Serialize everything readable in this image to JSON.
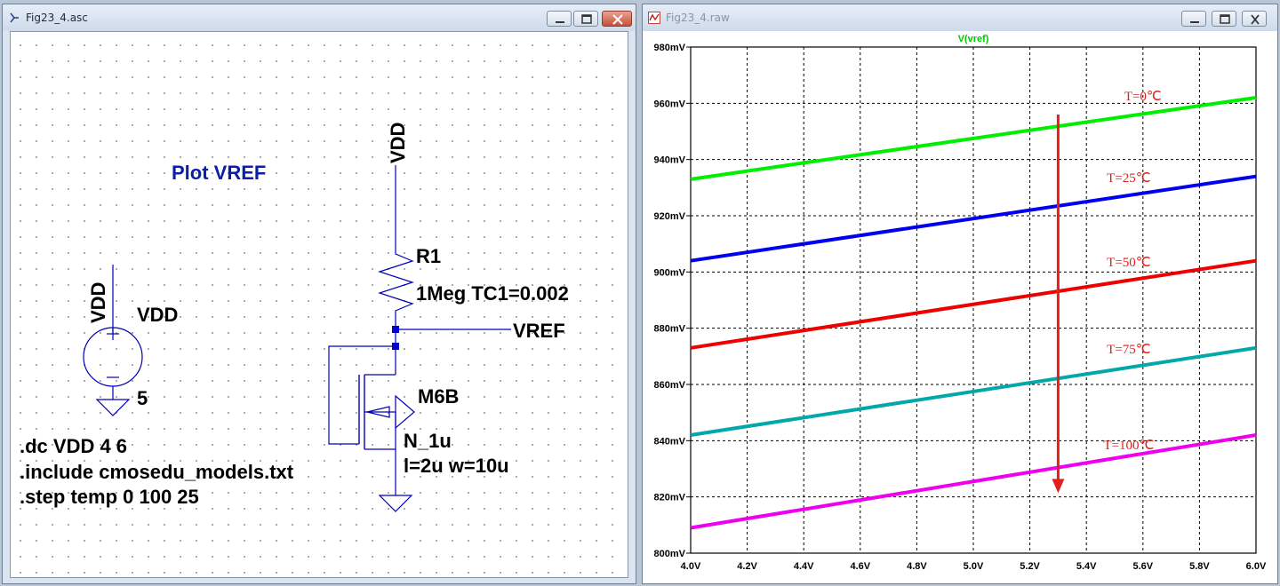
{
  "schematic_window": {
    "title": "Fig23_4.asc",
    "comment": "Plot VREF",
    "nets": {
      "vdd_supply": "VDD",
      "vdd_source": "VDD",
      "vref": "VREF"
    },
    "source": {
      "name": "VDD",
      "value": "5"
    },
    "resistor": {
      "name": "R1",
      "value": "1Meg TC1=0.002"
    },
    "mosfet": {
      "name": "M6B",
      "model": "N_1u",
      "size": "l=2u w=10u"
    },
    "directives": [
      ".dc VDD 4 6",
      ".include cmosedu_models.txt",
      ".step temp 0 100 25"
    ]
  },
  "plot_window": {
    "title": "Fig23_4.raw",
    "trace_label": "V(vref)"
  },
  "colors": {
    "trace_label": "#00c800",
    "temp_labels": "#e0201c",
    "arrow": "#e0201c",
    "schematic_blue": "#0000b8"
  },
  "chart_data": {
    "type": "line",
    "x_range": [
      4.0,
      6.0
    ],
    "y_range": [
      800,
      980
    ],
    "y_unit": "mV",
    "x_unit": "V",
    "x_ticks": [
      "4.0V",
      "4.2V",
      "4.4V",
      "4.6V",
      "4.8V",
      "5.0V",
      "5.2V",
      "5.4V",
      "5.6V",
      "5.8V",
      "6.0V"
    ],
    "y_ticks": [
      "800mV",
      "820mV",
      "840mV",
      "860mV",
      "880mV",
      "900mV",
      "920mV",
      "940mV",
      "960mV",
      "980mV"
    ],
    "grid": true,
    "series": [
      {
        "name": "T=0℃",
        "color": "#00ee00",
        "x": [
          4.0,
          6.0
        ],
        "y": [
          933,
          962
        ]
      },
      {
        "name": "T=25℃",
        "color": "#0000ee",
        "x": [
          4.0,
          6.0
        ],
        "y": [
          904,
          934
        ]
      },
      {
        "name": "T=50℃",
        "color": "#ee0000",
        "x": [
          4.0,
          6.0
        ],
        "y": [
          873,
          904
        ]
      },
      {
        "name": "T=75℃",
        "color": "#00a8a8",
        "x": [
          4.0,
          6.0
        ],
        "y": [
          842,
          873
        ]
      },
      {
        "name": "T=100℃",
        "color": "#ee00ee",
        "x": [
          4.0,
          6.0
        ],
        "y": [
          809,
          842
        ]
      }
    ],
    "label_x": [
      5.6,
      5.55,
      5.55,
      5.55,
      5.55
    ],
    "label_y": [
      961,
      932,
      902,
      871,
      837
    ],
    "arrow": {
      "x": 5.3,
      "y_start": 956,
      "y_end": 822
    }
  }
}
